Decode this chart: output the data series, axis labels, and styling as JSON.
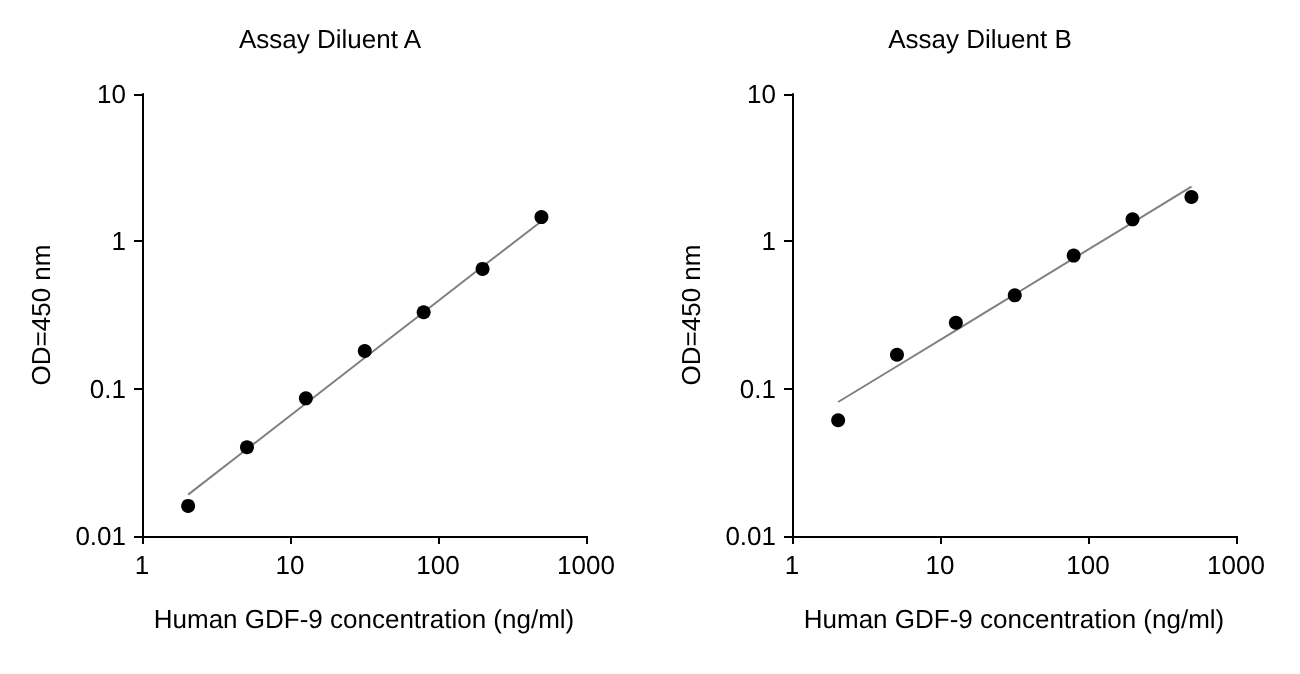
{
  "chart_data": [
    {
      "type": "scatter",
      "title": "Assay Diluent A",
      "xlabel": "Human GDF-9 concentration (ng/ml)",
      "ylabel": "OD=450 nm",
      "log": "xy",
      "grid": false,
      "marker": "circle",
      "x": [
        2.05,
        5.12,
        12.8,
        32,
        80,
        200,
        500
      ],
      "xlim": [
        1,
        1000
      ],
      "xticks": [
        1,
        10,
        100,
        1000
      ],
      "ylim": [
        0.01,
        10
      ],
      "yticks": [
        0.01,
        0.1,
        1,
        10
      ],
      "series": [
        {
          "color": "#000000",
          "values": [
            0.016,
            0.04,
            0.086,
            0.18,
            0.33,
            0.65,
            1.46
          ]
        },
        {
          "type": "line",
          "color": "#808080",
          "marker": "none",
          "values": [
            0.0191,
            0.0389,
            0.0793,
            0.162,
            0.33,
            0.674,
            1.37
          ]
        }
      ]
    },
    {
      "type": "scatter",
      "title": "Assay Diluent B",
      "xlabel": "Human GDF-9 concentration (ng/ml)",
      "ylabel": "OD=450 nm",
      "log": "xy",
      "grid": false,
      "marker": "circle",
      "x": [
        2.05,
        5.12,
        12.8,
        32,
        80,
        200,
        500
      ],
      "xlim": [
        1,
        1000
      ],
      "xticks": [
        1,
        10,
        100,
        1000
      ],
      "ylim": [
        0.01,
        10
      ],
      "yticks": [
        0.01,
        0.1,
        1,
        10
      ],
      "series": [
        {
          "color": "#000000",
          "values": [
            0.061,
            0.17,
            0.28,
            0.43,
            0.8,
            1.41,
            2.0
          ]
        },
        {
          "type": "line",
          "color": "#808080",
          "marker": "none",
          "values": [
            0.0812,
            0.142,
            0.249,
            0.437,
            0.766,
            1.34,
            2.35
          ]
        }
      ]
    }
  ]
}
